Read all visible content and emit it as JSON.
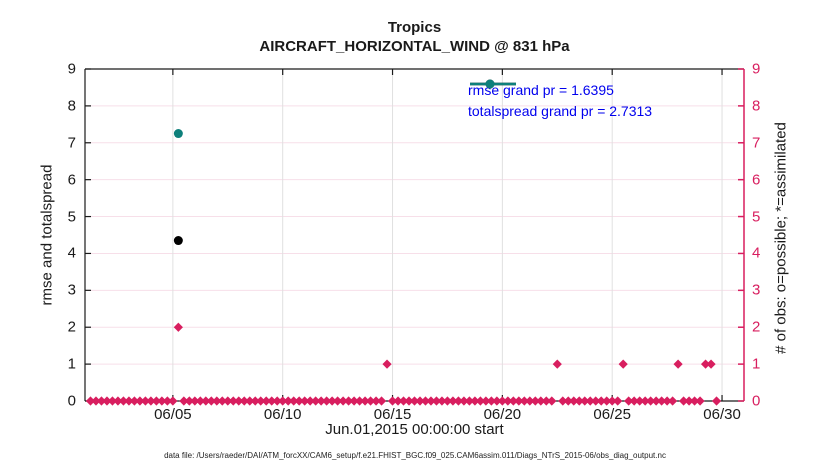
{
  "header": {
    "title": "Tropics",
    "subtitle": "AIRCRAFT_HORIZONTAL_WIND @ 831 hPa"
  },
  "footer": {
    "data_file_note": "data file: /Users/raeder/DAI/ATM_forcXX/CAM6_setup/f.e21.FHIST_BGC.f09_025.CAM6assim.011/Diags_NTrS_2015-06/obs_diag_output.nc"
  },
  "colors": {
    "obs_pink": "#d81e5f",
    "rmse_black": "#000000",
    "spread_teal": "#0e807b",
    "legend_text_blue": "#0000ee",
    "grid_horizontal_pink": "#f7dfe9",
    "grid_vertical_gray": "#e0e0e0",
    "axis_black": "#1a1a1a"
  },
  "chart_data": {
    "type": "scatter",
    "title": "Tropics",
    "subtitle": "AIRCRAFT_HORIZONTAL_WIND @ 831 hPa",
    "xlabel": "Jun.01,2015 00:00:00 start",
    "ylabel_left": "rmse and totalspread",
    "ylabel_right": "# of obs: o=possible; *=assimilated",
    "xlim_days": [
      0,
      30
    ],
    "ylim": [
      0,
      9
    ],
    "grid": true,
    "legend_position": "top-right-inside",
    "yticks": [
      0,
      1,
      2,
      3,
      4,
      5,
      6,
      7,
      8,
      9
    ],
    "xticks": [
      {
        "day": 4,
        "label": "06/05"
      },
      {
        "day": 9,
        "label": "06/10"
      },
      {
        "day": 14,
        "label": "06/15"
      },
      {
        "day": 19,
        "label": "06/20"
      },
      {
        "day": 24,
        "label": "06/25"
      },
      {
        "day": 29,
        "label": "06/30"
      }
    ],
    "series": [
      {
        "name": "rmse",
        "legend": "rmse grand pr = 1.6395",
        "marker": "circle",
        "color": "#000000",
        "points": [
          {
            "day": 4.25,
            "y": 4.35
          }
        ]
      },
      {
        "name": "totalspread",
        "legend": "totalspread grand pr = 2.7313",
        "marker": "circle",
        "color": "#0e807b",
        "points": [
          {
            "day": 4.25,
            "y": 7.25
          }
        ]
      },
      {
        "name": "obs_assimilated",
        "legend": null,
        "marker": "diamond",
        "color": "#d81e5f",
        "start_day": 0.25,
        "step_days": 0.25,
        "values": [
          0,
          0,
          0,
          0,
          0,
          0,
          0,
          0,
          0,
          0,
          0,
          0,
          0,
          0,
          0,
          0,
          2,
          0,
          0,
          0,
          0,
          0,
          0,
          0,
          0,
          0,
          0,
          0,
          0,
          0,
          0,
          0,
          0,
          0,
          0,
          0,
          0,
          0,
          0,
          0,
          0,
          0,
          0,
          0,
          0,
          0,
          0,
          0,
          0,
          0,
          0,
          0,
          0,
          0,
          1,
          0,
          0,
          0,
          0,
          0,
          0,
          0,
          0,
          0,
          0,
          0,
          0,
          0,
          0,
          0,
          0,
          0,
          0,
          0,
          0,
          0,
          0,
          0,
          0,
          0,
          0,
          0,
          0,
          0,
          0,
          1,
          0,
          0,
          0,
          0,
          0,
          0,
          0,
          0,
          0,
          0,
          0,
          1,
          0,
          0,
          0,
          0,
          0,
          0,
          0,
          0,
          0,
          1,
          0,
          0,
          0,
          0,
          1,
          1,
          0
        ]
      }
    ]
  }
}
